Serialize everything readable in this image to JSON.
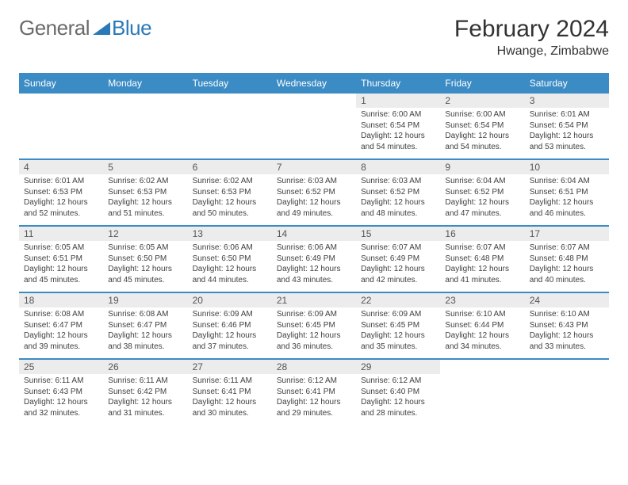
{
  "logo": {
    "part1": "General",
    "part2": "Blue"
  },
  "title": "February 2024",
  "location": "Hwange, Zimbabwe",
  "colors": {
    "header_bg": "#3b8bc4",
    "header_text": "#ffffff",
    "daynum_bg": "#ececec",
    "border": "#3b8bc4",
    "text": "#333333",
    "logo_gray": "#6a6a6a",
    "logo_blue": "#2a7ab8"
  },
  "day_names": [
    "Sunday",
    "Monday",
    "Tuesday",
    "Wednesday",
    "Thursday",
    "Friday",
    "Saturday"
  ],
  "weeks": [
    [
      null,
      null,
      null,
      null,
      {
        "n": "1",
        "sr": "6:00 AM",
        "ss": "6:54 PM",
        "dl": "12 hours and 54 minutes."
      },
      {
        "n": "2",
        "sr": "6:00 AM",
        "ss": "6:54 PM",
        "dl": "12 hours and 54 minutes."
      },
      {
        "n": "3",
        "sr": "6:01 AM",
        "ss": "6:54 PM",
        "dl": "12 hours and 53 minutes."
      }
    ],
    [
      {
        "n": "4",
        "sr": "6:01 AM",
        "ss": "6:53 PM",
        "dl": "12 hours and 52 minutes."
      },
      {
        "n": "5",
        "sr": "6:02 AM",
        "ss": "6:53 PM",
        "dl": "12 hours and 51 minutes."
      },
      {
        "n": "6",
        "sr": "6:02 AM",
        "ss": "6:53 PM",
        "dl": "12 hours and 50 minutes."
      },
      {
        "n": "7",
        "sr": "6:03 AM",
        "ss": "6:52 PM",
        "dl": "12 hours and 49 minutes."
      },
      {
        "n": "8",
        "sr": "6:03 AM",
        "ss": "6:52 PM",
        "dl": "12 hours and 48 minutes."
      },
      {
        "n": "9",
        "sr": "6:04 AM",
        "ss": "6:52 PM",
        "dl": "12 hours and 47 minutes."
      },
      {
        "n": "10",
        "sr": "6:04 AM",
        "ss": "6:51 PM",
        "dl": "12 hours and 46 minutes."
      }
    ],
    [
      {
        "n": "11",
        "sr": "6:05 AM",
        "ss": "6:51 PM",
        "dl": "12 hours and 45 minutes."
      },
      {
        "n": "12",
        "sr": "6:05 AM",
        "ss": "6:50 PM",
        "dl": "12 hours and 45 minutes."
      },
      {
        "n": "13",
        "sr": "6:06 AM",
        "ss": "6:50 PM",
        "dl": "12 hours and 44 minutes."
      },
      {
        "n": "14",
        "sr": "6:06 AM",
        "ss": "6:49 PM",
        "dl": "12 hours and 43 minutes."
      },
      {
        "n": "15",
        "sr": "6:07 AM",
        "ss": "6:49 PM",
        "dl": "12 hours and 42 minutes."
      },
      {
        "n": "16",
        "sr": "6:07 AM",
        "ss": "6:48 PM",
        "dl": "12 hours and 41 minutes."
      },
      {
        "n": "17",
        "sr": "6:07 AM",
        "ss": "6:48 PM",
        "dl": "12 hours and 40 minutes."
      }
    ],
    [
      {
        "n": "18",
        "sr": "6:08 AM",
        "ss": "6:47 PM",
        "dl": "12 hours and 39 minutes."
      },
      {
        "n": "19",
        "sr": "6:08 AM",
        "ss": "6:47 PM",
        "dl": "12 hours and 38 minutes."
      },
      {
        "n": "20",
        "sr": "6:09 AM",
        "ss": "6:46 PM",
        "dl": "12 hours and 37 minutes."
      },
      {
        "n": "21",
        "sr": "6:09 AM",
        "ss": "6:45 PM",
        "dl": "12 hours and 36 minutes."
      },
      {
        "n": "22",
        "sr": "6:09 AM",
        "ss": "6:45 PM",
        "dl": "12 hours and 35 minutes."
      },
      {
        "n": "23",
        "sr": "6:10 AM",
        "ss": "6:44 PM",
        "dl": "12 hours and 34 minutes."
      },
      {
        "n": "24",
        "sr": "6:10 AM",
        "ss": "6:43 PM",
        "dl": "12 hours and 33 minutes."
      }
    ],
    [
      {
        "n": "25",
        "sr": "6:11 AM",
        "ss": "6:43 PM",
        "dl": "12 hours and 32 minutes."
      },
      {
        "n": "26",
        "sr": "6:11 AM",
        "ss": "6:42 PM",
        "dl": "12 hours and 31 minutes."
      },
      {
        "n": "27",
        "sr": "6:11 AM",
        "ss": "6:41 PM",
        "dl": "12 hours and 30 minutes."
      },
      {
        "n": "28",
        "sr": "6:12 AM",
        "ss": "6:41 PM",
        "dl": "12 hours and 29 minutes."
      },
      {
        "n": "29",
        "sr": "6:12 AM",
        "ss": "6:40 PM",
        "dl": "12 hours and 28 minutes."
      },
      null,
      null
    ]
  ],
  "labels": {
    "sunrise": "Sunrise:",
    "sunset": "Sunset:",
    "daylight": "Daylight:"
  }
}
